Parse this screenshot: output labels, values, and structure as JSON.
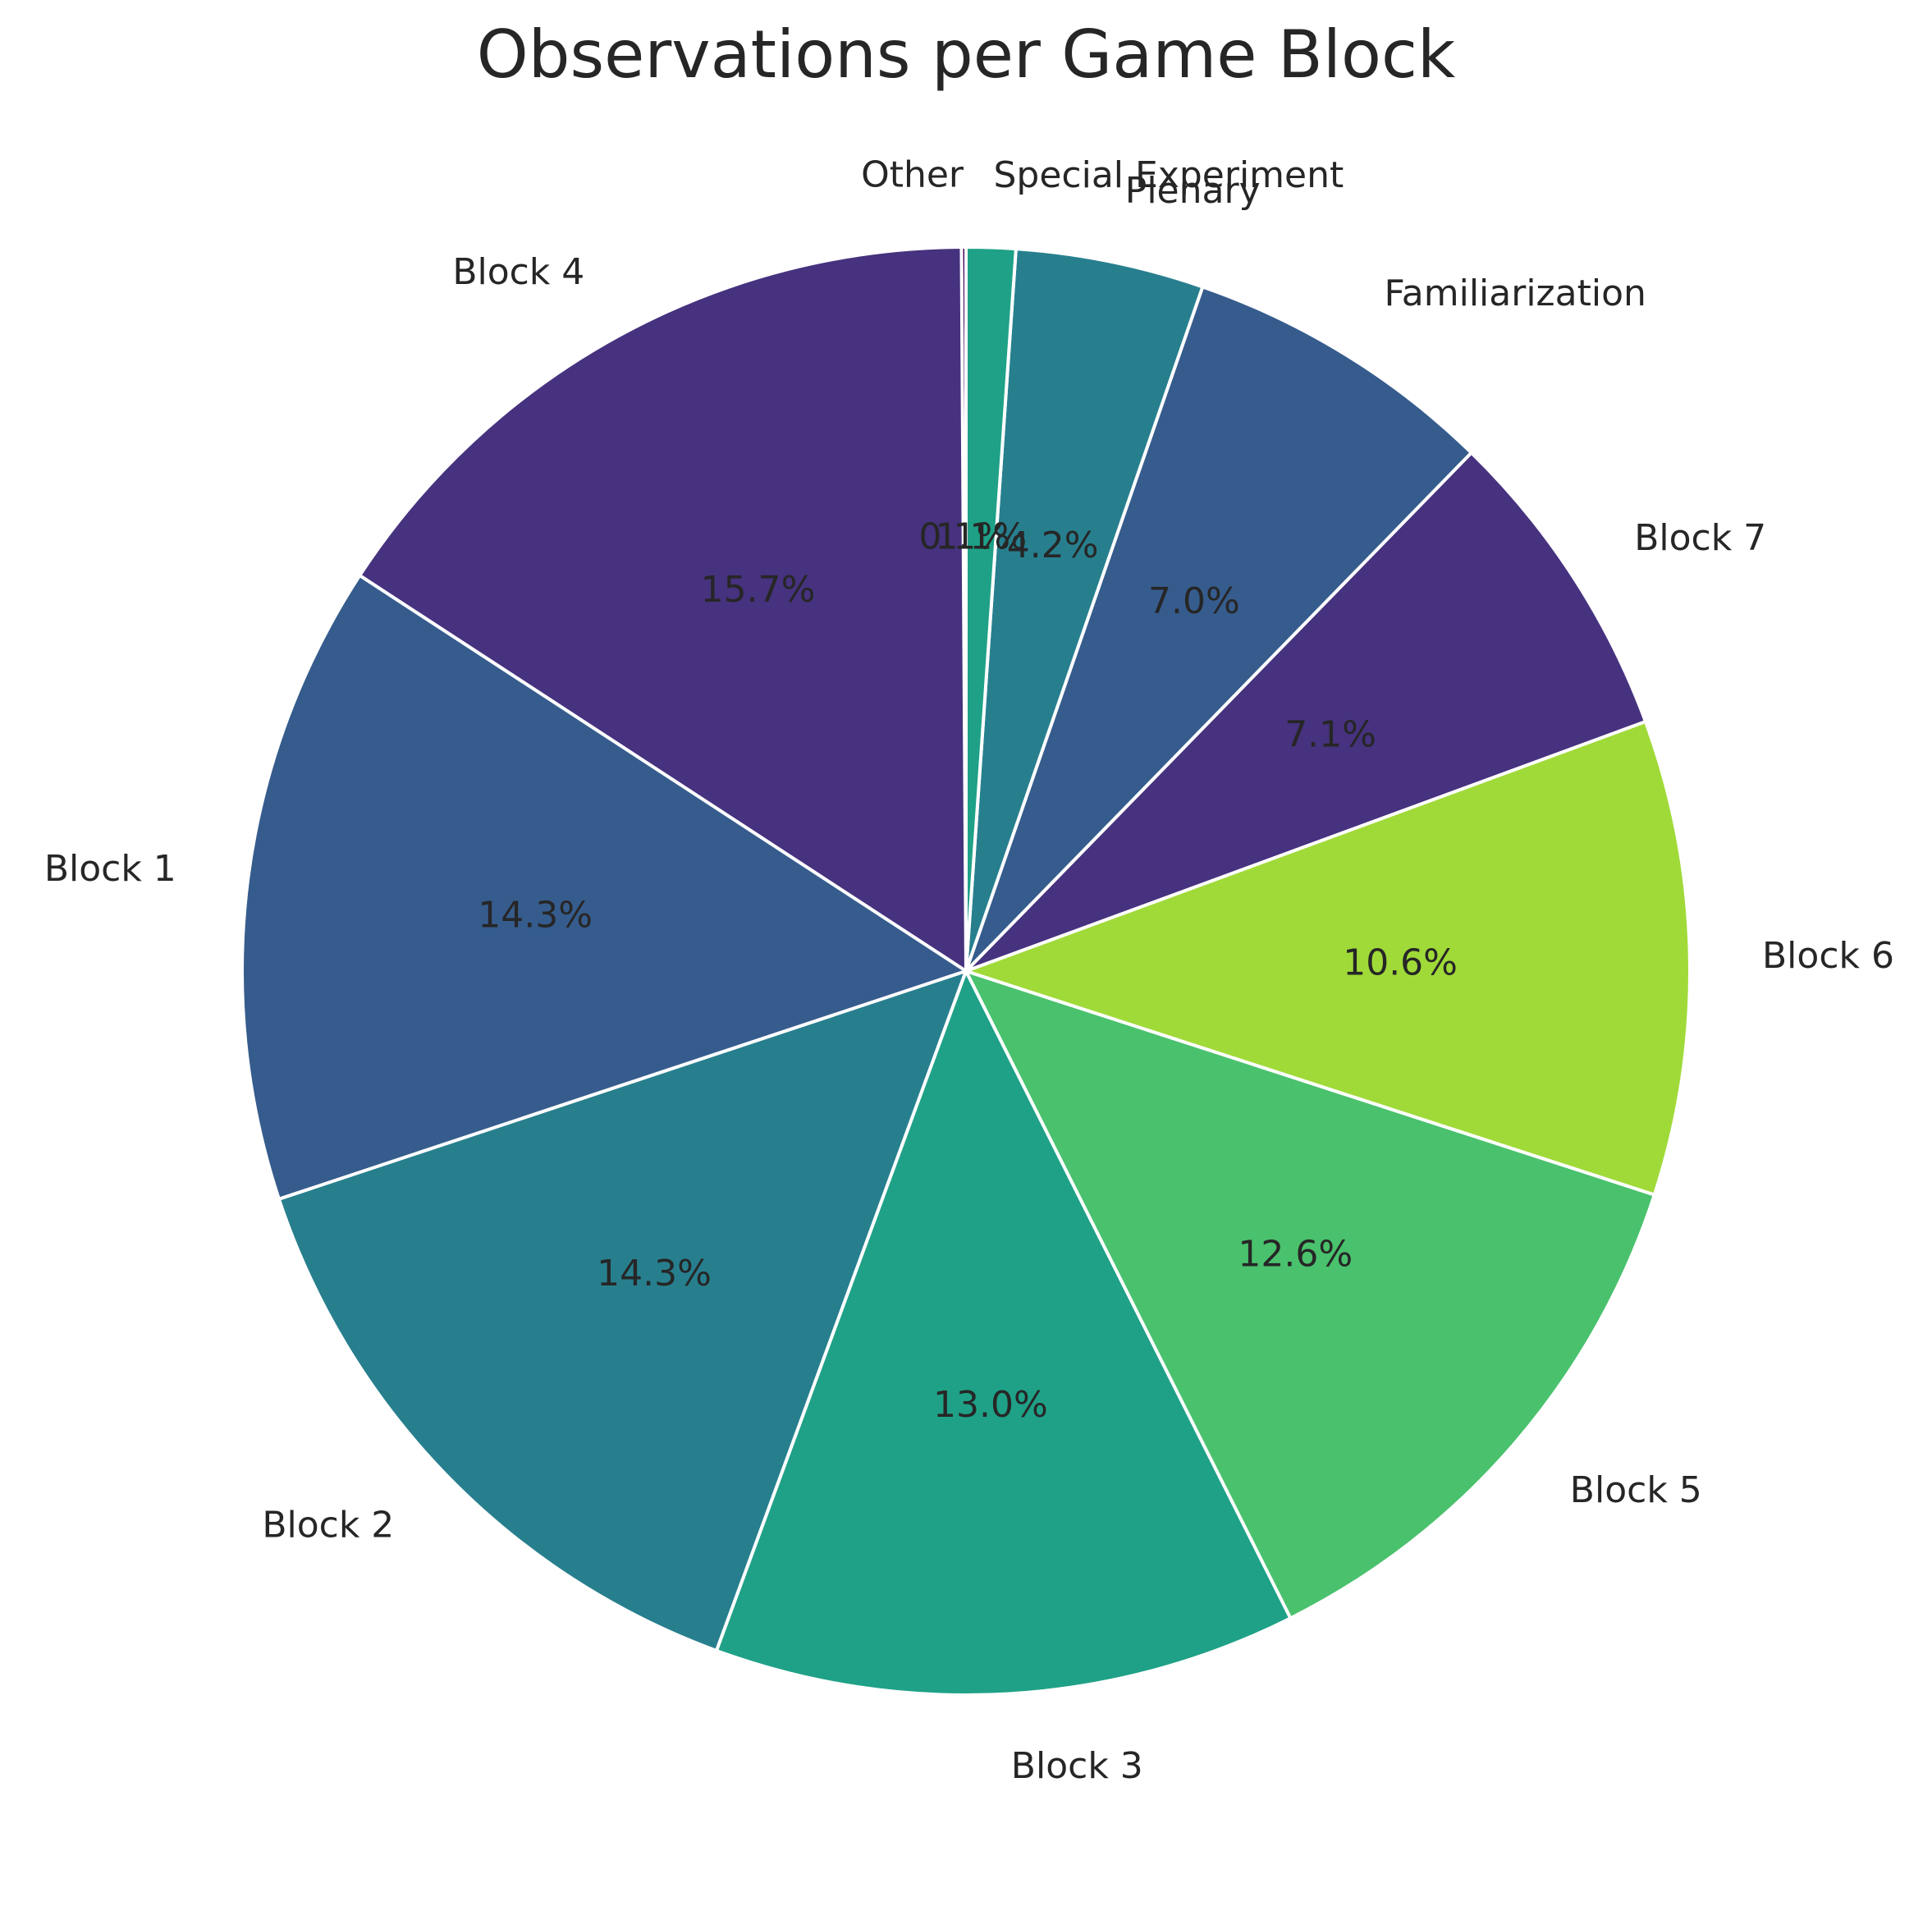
{
  "chart_data": {
    "type": "pie",
    "title": "Observations per Game Block",
    "start_angle_deg": 90,
    "direction": "counterclockwise",
    "slices": [
      {
        "label": "Other",
        "pct_label": "0.1%",
        "value": 0.1,
        "color": "#440154"
      },
      {
        "label": "Block 4",
        "pct_label": "15.7%",
        "value": 15.7,
        "color": "#46327e"
      },
      {
        "label": "Block 1",
        "pct_label": "14.3%",
        "value": 14.3,
        "color": "#365c8d"
      },
      {
        "label": "Block 2",
        "pct_label": "14.3%",
        "value": 14.3,
        "color": "#277f8e"
      },
      {
        "label": "Block 3",
        "pct_label": "13.0%",
        "value": 13.0,
        "color": "#1fa187"
      },
      {
        "label": "Block 5",
        "pct_label": "12.6%",
        "value": 12.6,
        "color": "#4ac16d"
      },
      {
        "label": "Block 6",
        "pct_label": "10.6%",
        "value": 10.6,
        "color": "#a0da39"
      },
      {
        "label": "Block 7",
        "pct_label": "7.1%",
        "value": 7.1,
        "color": "#46327e"
      },
      {
        "label": "Familiarization",
        "pct_label": "7.0%",
        "value": 7.0,
        "color": "#365c8d"
      },
      {
        "label": "Plenary",
        "pct_label": "4.2%",
        "value": 4.2,
        "color": "#277f8e"
      },
      {
        "label": "Special Experiment",
        "pct_label": "1.1%",
        "value": 1.1,
        "color": "#1fa187"
      }
    ]
  }
}
